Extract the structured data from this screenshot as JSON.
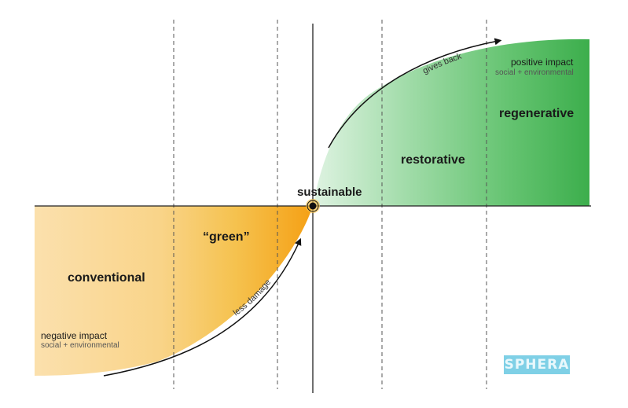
{
  "stages": {
    "conventional": "conventional",
    "green": "“green”",
    "sustainable": "sustainable",
    "restorative": "restorative",
    "regenerative": "regenerative"
  },
  "impact": {
    "negative_title": "negative impact",
    "negative_sub": "social + environmental",
    "positive_title": "positive impact",
    "positive_sub": "social + environmental"
  },
  "arrows": {
    "less_damage": "less damage",
    "gives_back": "gives back"
  },
  "logo": {
    "text": "SPHERA"
  },
  "colors": {
    "negative_light": "#fbe2ad",
    "negative_dark": "#f6a81e",
    "positive_light": "#cfeed4",
    "positive_dark": "#3fb24f",
    "logo_bg": "#7fd0e6"
  }
}
